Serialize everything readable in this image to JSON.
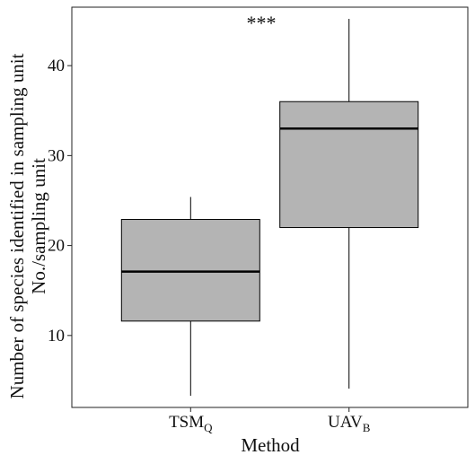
{
  "chart_data": {
    "type": "boxplot",
    "title": "",
    "xlabel": "Method",
    "ylabel": [
      "Number of species identified in sampling unit",
      "No./sampling unit"
    ],
    "ylim": [
      2,
      46.5
    ],
    "yticks": [
      10,
      20,
      30,
      40
    ],
    "grid": false,
    "legend": "none",
    "significance_label": "***",
    "box_fill": "#b4b4b4",
    "line_color": "#000000",
    "categories": [
      {
        "main": "TSM",
        "sub": "Q"
      },
      {
        "main": "UAV",
        "sub": "B"
      }
    ],
    "boxes": [
      {
        "min": 3.3,
        "q1": 11.6,
        "median": 17.1,
        "q3": 22.9,
        "max": 25.4
      },
      {
        "min": 4.1,
        "q1": 22.0,
        "median": 33.0,
        "q3": 36.0,
        "max": 45.2
      }
    ]
  }
}
